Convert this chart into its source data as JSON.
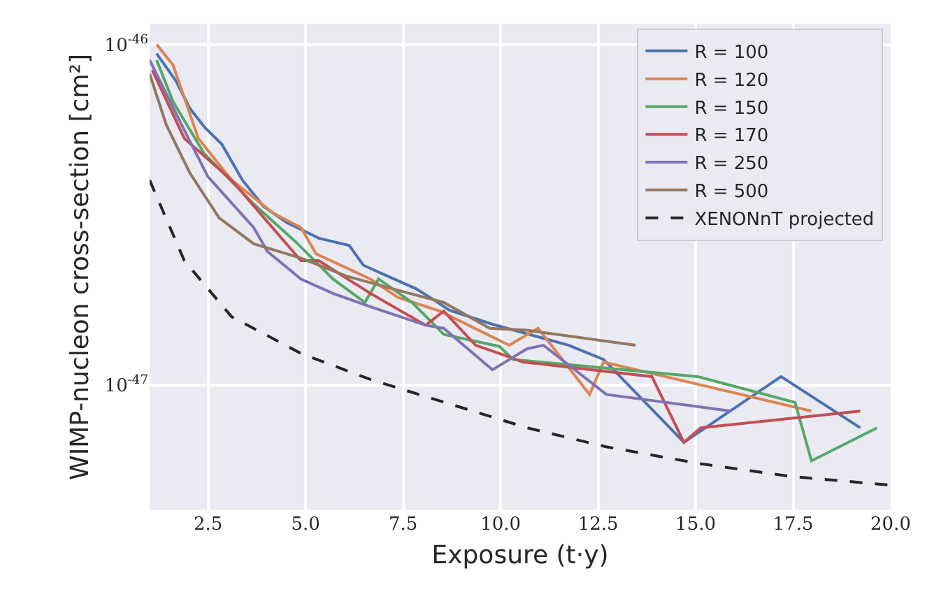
{
  "chart_data": {
    "type": "line",
    "xlabel": "Exposure (t·y)",
    "ylabel": "WIMP-nucleon cross-section [cm²]",
    "log": "y",
    "grid": true,
    "legend": "top right",
    "marker": "none",
    "xlim": [
      1,
      20
    ],
    "xticks": [
      {
        "value": 2.5,
        "label": "2.5"
      },
      {
        "value": 5,
        "label": "5.0"
      },
      {
        "value": 7.5,
        "label": "7.5"
      },
      {
        "value": 10,
        "label": "10.0"
      },
      {
        "value": 12.5,
        "label": "12.5"
      },
      {
        "value": 15,
        "label": "15.0"
      },
      {
        "value": 17.5,
        "label": "17.5"
      },
      {
        "value": 20,
        "label": "20.0"
      }
    ],
    "ylim": [
      4.3e-48,
      1.15e-46
    ],
    "yticks": [
      {
        "value": 1e-47,
        "label": "10$^{-47}$"
      },
      {
        "value": 1e-46,
        "label": "10$^{-46}$"
      }
    ],
    "series": [
      {
        "name": "R = 100",
        "color": "#4c72b0",
        "x": [
          1.18,
          1.68,
          2.03,
          2.42,
          2.85,
          3.38,
          3.92,
          4.52,
          5.34,
          6.12,
          6.48,
          6.94,
          7.83,
          8.19,
          8.69,
          9.79,
          11.75,
          12.64,
          14.7,
          17.19,
          19.22
        ],
        "values": [
          9.4e-47,
          7.8e-47,
          6.5e-47,
          5.7e-47,
          5.1e-47,
          4e-47,
          3.35e-47,
          3e-47,
          2.7e-47,
          2.57e-47,
          2.25e-47,
          2.13e-47,
          1.92e-47,
          1.81e-47,
          1.66e-47,
          1.51e-47,
          1.31e-47,
          1.19e-47,
          6.8e-48,
          1.06e-47,
          7.5e-48
        ]
      },
      {
        "name": "R = 120",
        "color": "#dd8452",
        "x": [
          1.18,
          1.6,
          2.25,
          3.1,
          4.17,
          4.88,
          5.27,
          6.66,
          7.37,
          8.44,
          10.22,
          10.96,
          12.28,
          12.64,
          17.97
        ],
        "values": [
          1e-46,
          8.7e-47,
          5.3e-47,
          4e-47,
          3.2e-47,
          2.9e-47,
          2.43e-47,
          2.05e-47,
          1.81e-47,
          1.65e-47,
          1.31e-47,
          1.47e-47,
          9.4e-48,
          1.17e-47,
          8.4e-48
        ]
      },
      {
        "name": "R = 150",
        "color": "#55a868",
        "x": [
          1.18,
          1.6,
          2.39,
          3.67,
          4.74,
          5.7,
          6.52,
          6.87,
          7.73,
          8.54,
          9.97,
          10.32,
          15.06,
          17.55,
          17.97,
          19.65
        ],
        "values": [
          9e-47,
          6.8e-47,
          4.8e-47,
          3.4e-47,
          2.64e-47,
          2.05e-47,
          1.75e-47,
          2.05e-47,
          1.75e-47,
          1.41e-47,
          1.3e-47,
          1.19e-47,
          1.06e-47,
          8.9e-48,
          6e-48,
          7.5e-48
        ]
      },
      {
        "name": "R = 170",
        "color": "#c44e52",
        "x": [
          1.07,
          1.89,
          3.1,
          4.88,
          5.34,
          6.66,
          8.08,
          8.54,
          9.36,
          10.32,
          10.57,
          13.88,
          14.7,
          15.13,
          19.22
        ],
        "values": [
          8.4e-47,
          5.3e-47,
          4e-47,
          2.32e-47,
          2.32e-47,
          1.86e-47,
          1.5e-47,
          1.65e-47,
          1.31e-47,
          1.2e-47,
          1.17e-47,
          1.06e-47,
          6.8e-48,
          7.5e-48,
          8.4e-48
        ]
      },
      {
        "name": "R = 250",
        "color": "#8172b3",
        "x": [
          1.0,
          1.89,
          2.49,
          3.67,
          4.02,
          4.88,
          5.7,
          6.66,
          8.08,
          8.54,
          9.79,
          10.68,
          11.1,
          12.71,
          15.91
        ],
        "values": [
          9e-47,
          5.6e-47,
          4.1e-47,
          2.9e-47,
          2.47e-47,
          2.05e-47,
          1.86e-47,
          1.7e-47,
          1.5e-47,
          1.47e-47,
          1.11e-47,
          1.28e-47,
          1.31e-47,
          9.4e-48,
          8.4e-48
        ]
      },
      {
        "name": "R = 500",
        "color": "#937860",
        "x": [
          1.0,
          1.43,
          2.03,
          2.78,
          3.67,
          4.88,
          6.05,
          7.37,
          8.54,
          9.72,
          10.68,
          13.46
        ],
        "values": [
          8.2e-47,
          5.8e-47,
          4.2e-47,
          3.1e-47,
          2.6e-47,
          2.36e-47,
          2.09e-47,
          1.9e-47,
          1.75e-47,
          1.47e-47,
          1.45e-47,
          1.31e-47
        ]
      },
      {
        "name": "XENONnT projected",
        "color": "#262626",
        "line_style": "dashed",
        "x": [
          1.0,
          1.89,
          3.1,
          4.88,
          6.66,
          8.44,
          10.68,
          12.7,
          15.06,
          17.44,
          19.93
        ],
        "values": [
          4e-47,
          2.32e-47,
          1.59e-47,
          1.24e-47,
          1.04e-47,
          9e-48,
          7.5e-48,
          6.6e-48,
          5.9e-48,
          5.4e-48,
          5.1e-48
        ]
      }
    ]
  }
}
